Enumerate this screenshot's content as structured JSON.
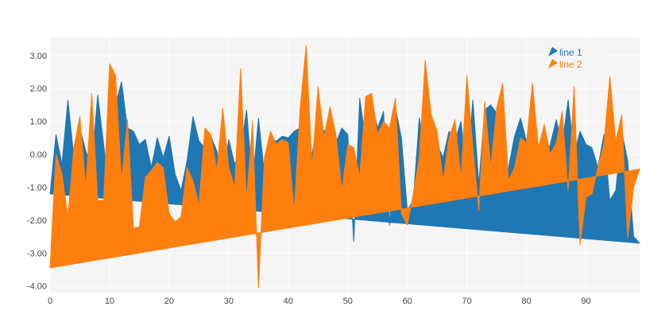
{
  "chart_data": {
    "type": "area",
    "xlim": [
      0,
      99
    ],
    "ylim": [
      -4.2,
      3.55
    ],
    "x_ticks": [
      0,
      10,
      20,
      30,
      40,
      50,
      60,
      70,
      80,
      90
    ],
    "y_ticks": [
      -4,
      -3,
      -2,
      -1,
      0,
      1,
      2,
      3
    ],
    "y_tick_labels": [
      "-4.00",
      "-3.00",
      "-2.00",
      "-1.00",
      "0.00",
      "1.00",
      "2.00",
      "3.00"
    ],
    "grid": true,
    "legend_position": "top-right",
    "series": [
      {
        "name": "line 1",
        "color": "#1f77b4",
        "values": [
          -1.2,
          0.6,
          -0.3,
          1.65,
          -0.1,
          0.8,
          0.1,
          -0.4,
          1.8,
          0.3,
          -1.3,
          1.5,
          2.2,
          0.8,
          0.7,
          0.3,
          0.45,
          -0.4,
          0.5,
          -0.1,
          0.55,
          -0.6,
          -1.1,
          -0.2,
          1.15,
          0.4,
          0.2,
          0.55,
          0.1,
          -0.8,
          0.45,
          -0.3,
          0.1,
          1.35,
          -0.9,
          1.1,
          -0.6,
          0.5,
          0.4,
          0.55,
          0.5,
          0.7,
          0.8,
          0.6,
          0.0,
          1.05,
          0.7,
          0.9,
          0.35,
          0.8,
          0.6,
          -2.65,
          1.7,
          0.4,
          1.6,
          0.8,
          1.3,
          -2.15,
          1.4,
          0.5,
          -1.7,
          -1.4,
          1.1,
          0.1,
          0.6,
          0.3,
          -0.1,
          0.7,
          0.4,
          1.0,
          -0.6,
          1.65,
          -0.9,
          1.35,
          1.5,
          1.25,
          -0.9,
          -0.4,
          0.55,
          1.1,
          0.4,
          0.55,
          -0.1,
          -0.3,
          0.3,
          1.05,
          0.3,
          1.65,
          0.0,
          0.7,
          0.3,
          0.2,
          -0.4,
          0.6,
          -1.4,
          -1.1,
          0.7,
          -0.2,
          -2.5,
          -2.7
        ]
      },
      {
        "name": "line 2",
        "color": "#ff7f0e",
        "values": [
          -3.45,
          0.0,
          -0.6,
          -1.9,
          0.2,
          1.15,
          -1.0,
          1.85,
          -1.4,
          -1.4,
          2.75,
          2.4,
          -0.8,
          1.05,
          -2.25,
          -2.2,
          -0.7,
          -0.5,
          -0.25,
          -0.4,
          -1.8,
          -2.05,
          -1.9,
          -0.4,
          -0.8,
          -1.55,
          0.8,
          0.6,
          -0.5,
          1.4,
          -0.4,
          -1.0,
          2.6,
          -1.4,
          1.0,
          -4.05,
          -0.1,
          0.7,
          0.3,
          0.45,
          0.35,
          -1.75,
          1.4,
          3.3,
          -0.4,
          2.05,
          0.5,
          1.45,
          0.6,
          -1.1,
          0.3,
          0.2,
          -0.7,
          1.75,
          1.85,
          0.6,
          1.0,
          0.8,
          1.7,
          -1.8,
          -2.15,
          -1.2,
          -0.1,
          2.85,
          1.2,
          0.7,
          -0.8,
          0.5,
          1.05,
          -0.75,
          2.4,
          0.2,
          -1.7,
          1.6,
          -0.4,
          1.4,
          2.15,
          -0.8,
          -0.4,
          0.5,
          0.35,
          2.15,
          0.2,
          0.9,
          0.0,
          0.35,
          1.3,
          -1.1,
          2.05,
          -2.75,
          -1.3,
          -1.2,
          -0.4,
          0.3,
          2.35,
          0.4,
          1.2,
          -2.55,
          -1.0,
          -0.45
        ]
      }
    ]
  }
}
